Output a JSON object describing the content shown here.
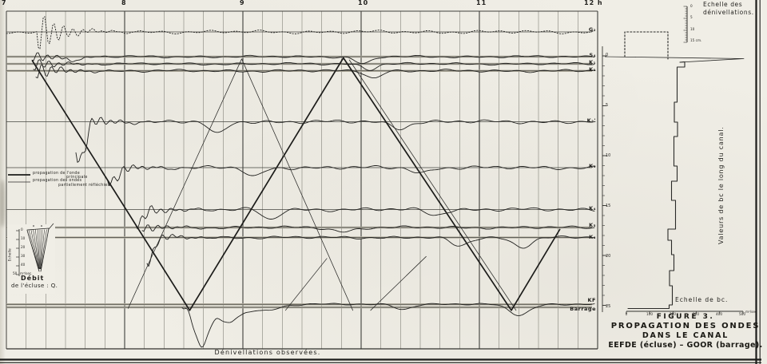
{
  "page": {
    "background_hex": "#f0eee6",
    "ink_hex": "#222220"
  },
  "main_chart": {
    "caption": "Dénivellations observées.",
    "legend": {
      "entries": [
        {
          "line1": "propagation de l'onde",
          "line2": "principale",
          "weight": "thick"
        },
        {
          "line1": "propagation des ondes",
          "line2": "partiellement réfléchies",
          "weight": "thin"
        }
      ]
    },
    "inset": {
      "title_line1": "Débit",
      "title_line2": "de l'écluse : Q.",
      "scale_label": "Echelle",
      "ticks": [
        "0",
        "10",
        "20",
        "30",
        "40",
        "50"
      ],
      "unit": "m³/sec."
    }
  },
  "right_panel": {
    "deniv_scale": {
      "title_line1": "Echelle des",
      "title_line2": "dénivellations.",
      "ticks": [
        "0",
        "5",
        "10",
        "15 cm."
      ]
    },
    "distance_axis": {
      "ticks": [
        "0",
        "5",
        "10",
        "15",
        "20",
        "25"
      ]
    },
    "rotated_label": "Valeurs de bc le long du canal.",
    "bc_axis": {
      "label": "Echelle de bc.",
      "ticks": [
        "0",
        "100",
        "200",
        "300",
        "400",
        "500"
      ],
      "unit": "m²/sec"
    },
    "figure_caption": {
      "line1": "FIGURE 3.",
      "line2": "PROPAGATION DES ONDES",
      "line3": "DANS LE CANAL",
      "line4": "EEFDE (écluse) – GOOR (barrage)."
    }
  },
  "chart_data": {
    "type": "line",
    "title": "Propagation des ondes dans le canal Eefde (écluse) – Goor (barrage)",
    "x_axis": {
      "label": "heure",
      "range_h": [
        7,
        12
      ],
      "tick_labels": [
        "7",
        "8",
        "9",
        "10",
        "11",
        "12 h"
      ],
      "minor_intervals_per_hour": 6
    },
    "stations": [
      {
        "label": "G₂",
        "km": -2.4,
        "style": "plain",
        "label_dy": -6
      },
      {
        "label": "S₄",
        "km": 0.08,
        "style": "band",
        "label_dy": -5
      },
      {
        "label": "K₁",
        "km": 0.8,
        "style": "band",
        "label_dy": -5
      },
      {
        "label": "K₂",
        "km": 1.5,
        "style": "band",
        "label_dy": -5
      },
      {
        "label": "K₂'",
        "km": 6.6,
        "style": "plain",
        "label_dy": -5
      },
      {
        "label": "K₃",
        "km": 11.2,
        "style": "plain",
        "label_dy": -5
      },
      {
        "label": "K₄",
        "km": 15.4,
        "style": "plain",
        "label_dy": -5
      },
      {
        "label": "K₅",
        "km": 17.2,
        "style": "band",
        "label_dy": -6
      },
      {
        "label": "K₆",
        "km": 18.2,
        "style": "band",
        "label_dy": -4
      },
      {
        "label": "KF",
        "km": 24.9,
        "style": "band",
        "label_dy": -8
      },
      {
        "label": "Barrage",
        "km": 25.2,
        "style": "band",
        "label_dy": -1
      }
    ],
    "trace_params": [
      {
        "start_x": 8,
        "osc_x": 48,
        "init_amp": 26,
        "amp": 2.6,
        "style": "dotted",
        "events": []
      },
      {
        "start_x": 40,
        "init_amp": 7,
        "amp": 1.8,
        "events": [
          [
            95,
            6,
            10
          ],
          [
            455,
            9,
            14
          ]
        ]
      },
      {
        "start_x": 42,
        "init_amp": 8,
        "amp": 1.8,
        "events": [
          [
            462,
            7,
            12
          ]
        ]
      },
      {
        "start_x": 45,
        "init_amp": 11,
        "amp": 2.2,
        "events": [
          [
            468,
            9,
            12
          ]
        ]
      },
      {
        "start_x": 95,
        "init_amp": 14,
        "amp": 2.8,
        "events": [
          [
            101,
            50,
            8
          ],
          [
            272,
            16,
            14
          ],
          [
            500,
            8,
            16
          ]
        ]
      },
      {
        "start_x": 135,
        "init_amp": 10,
        "amp": 2.8,
        "events": [
          [
            141,
            20,
            8
          ],
          [
            318,
            12,
            14
          ],
          [
            527,
            7,
            14
          ]
        ]
      },
      {
        "start_x": 170,
        "init_amp": 10,
        "amp": 2.8,
        "events": [
          [
            175,
            18,
            8
          ],
          [
            338,
            13,
            14
          ],
          [
            545,
            7,
            14
          ]
        ]
      },
      {
        "start_x": 178,
        "init_amp": 6,
        "amp": 2.2,
        "events": [
          [
            430,
            5,
            20
          ]
        ]
      },
      {
        "start_x": 184,
        "init_amp": 8,
        "amp": 2.2,
        "events": [
          [
            187,
            30,
            8
          ],
          [
            575,
            11,
            16
          ],
          [
            653,
            12,
            16
          ]
        ]
      },
      {
        "start_x": 228,
        "init_amp": 3,
        "amp": 1.5,
        "events": [
          [
            252,
            51,
            13
          ],
          [
            285,
            22,
            20
          ],
          [
            330,
            8,
            25
          ],
          [
            505,
            6,
            14
          ],
          [
            650,
            13,
            18
          ]
        ]
      },
      null
    ],
    "main_wave_t_km": [
      [
        7.22,
        0.5
      ],
      [
        8.55,
        25.5
      ],
      [
        9.85,
        0.2
      ],
      [
        11.27,
        25.5
      ],
      [
        11.68,
        17.4
      ]
    ],
    "reflected_waves_t_km": [
      [
        [
          8.03,
          25.3
        ],
        [
          8.99,
          0.3
        ],
        [
          9.93,
          25.5
        ]
      ],
      [
        [
          9.9,
          0.4
        ],
        [
          11.31,
          25.5
        ]
      ],
      [
        [
          9.36,
          25.5
        ],
        [
          9.71,
          20.3
        ]
      ],
      [
        [
          10.08,
          25.5
        ],
        [
          10.55,
          20.1
        ]
      ]
    ],
    "bc_profile": {
      "unit": "m²/sec",
      "x_range": [
        0,
        500
      ],
      "points_km_bc": [
        [
          0.6,
          240
        ],
        [
          1.2,
          215
        ],
        [
          6,
          212
        ],
        [
          7.5,
          200
        ],
        [
          8.5,
          215
        ],
        [
          11,
          212
        ],
        [
          12.5,
          190
        ],
        [
          14.5,
          205
        ],
        [
          17.3,
          172
        ],
        [
          18.3,
          190
        ],
        [
          19.5,
          208
        ],
        [
          21,
          200
        ],
        [
          23,
          185
        ],
        [
          24.8,
          182
        ]
      ],
      "spike_bc_at_lock": 510
    },
    "discharge": {
      "peak_m3s": 50,
      "start_h": 7.1,
      "end_h": 7.45
    }
  }
}
